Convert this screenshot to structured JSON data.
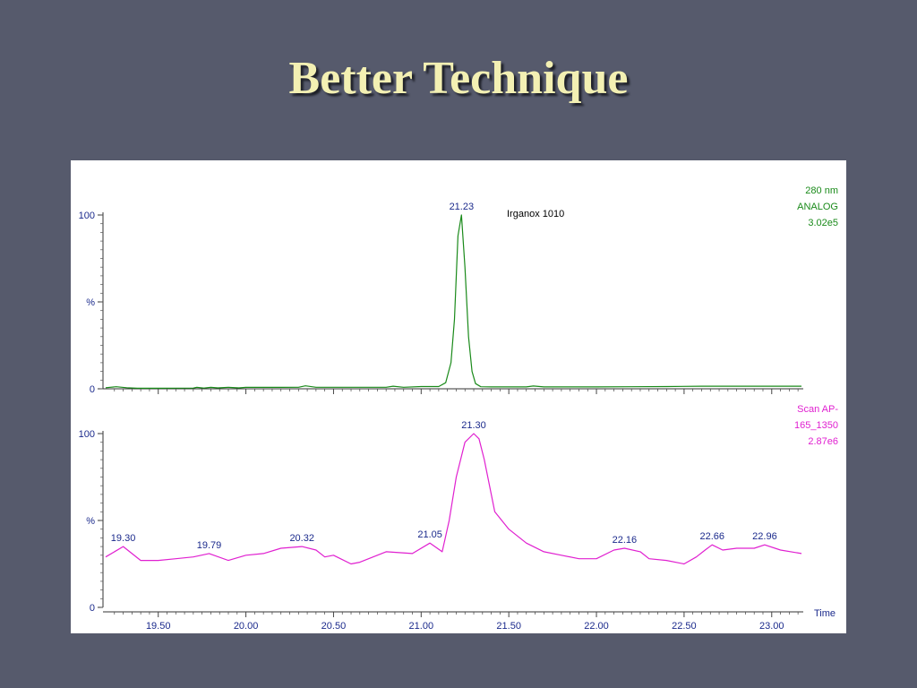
{
  "slide": {
    "title": "Better Technique"
  },
  "colors": {
    "background": "#565a6c",
    "title": "#f3f0b3",
    "uv_trace": "#1a8a1a",
    "ms_trace": "#e020d0",
    "axis_text": "#1b2a8c"
  },
  "chart_data": [
    {
      "type": "line",
      "trace": "uv",
      "annotation": "Irganox 1010",
      "channel_labels": [
        "280 nm",
        "ANALOG",
        "3.02e5"
      ],
      "y_tick_labels": [
        "100",
        "%",
        "0"
      ],
      "ylim": [
        0,
        100
      ],
      "xlim": [
        19.2,
        23.18
      ],
      "peak_labels": [
        {
          "x": 21.23,
          "y": 100,
          "text": "21.23"
        }
      ],
      "x": [
        19.2,
        19.26,
        19.32,
        19.38,
        19.5,
        19.7,
        19.72,
        19.76,
        19.8,
        19.84,
        19.9,
        19.96,
        20.0,
        20.1,
        20.2,
        20.3,
        20.34,
        20.4,
        20.6,
        20.8,
        20.84,
        20.9,
        21.0,
        21.1,
        21.14,
        21.17,
        21.19,
        21.21,
        21.23,
        21.25,
        21.27,
        21.29,
        21.31,
        21.34,
        21.4,
        21.5,
        21.6,
        21.64,
        21.7,
        22.0,
        22.2,
        22.4,
        22.6,
        22.8,
        23.0,
        23.17
      ],
      "series": [
        {
          "values": [
            0.6,
            1.2,
            0.6,
            0.3,
            0.3,
            0.4,
            0.8,
            0.4,
            0.8,
            0.5,
            0.8,
            0.5,
            0.8,
            0.8,
            0.8,
            0.9,
            1.7,
            0.9,
            0.9,
            0.9,
            1.5,
            0.9,
            1.3,
            1.3,
            3.5,
            15,
            40,
            88,
            100,
            70,
            30,
            10,
            3,
            1.2,
            1.1,
            1.1,
            1.1,
            1.6,
            1.1,
            1.1,
            1.2,
            1.3,
            1.5,
            1.5,
            1.5,
            1.5
          ]
        }
      ]
    },
    {
      "type": "line",
      "trace": "ms",
      "channel_labels": [
        "Scan AP-",
        "165_1350",
        "2.87e6"
      ],
      "y_tick_labels": [
        "100",
        "%",
        "0"
      ],
      "ylim": [
        0,
        100
      ],
      "xlim": [
        19.2,
        23.18
      ],
      "x_axis_label": "Time",
      "x_ticks": [
        "19.50",
        "20.00",
        "20.50",
        "21.00",
        "21.50",
        "22.00",
        "22.50",
        "23.00"
      ],
      "peak_labels": [
        {
          "x": 19.3,
          "y": 35,
          "text": "19.30"
        },
        {
          "x": 19.79,
          "y": 31,
          "text": "19.79"
        },
        {
          "x": 20.32,
          "y": 35,
          "text": "20.32"
        },
        {
          "x": 21.05,
          "y": 37,
          "text": "21.05"
        },
        {
          "x": 21.3,
          "y": 100,
          "text": "21.30"
        },
        {
          "x": 22.16,
          "y": 34,
          "text": "22.16"
        },
        {
          "x": 22.66,
          "y": 36,
          "text": "22.66"
        },
        {
          "x": 22.96,
          "y": 36,
          "text": "22.96"
        }
      ],
      "x": [
        19.2,
        19.3,
        19.4,
        19.5,
        19.6,
        19.7,
        19.79,
        19.9,
        20.0,
        20.1,
        20.2,
        20.32,
        20.4,
        20.45,
        20.5,
        20.6,
        20.65,
        20.8,
        20.95,
        21.05,
        21.12,
        21.16,
        21.2,
        21.25,
        21.3,
        21.33,
        21.36,
        21.42,
        21.5,
        21.6,
        21.7,
        21.8,
        21.9,
        22.0,
        22.1,
        22.16,
        22.25,
        22.3,
        22.4,
        22.5,
        22.57,
        22.62,
        22.66,
        22.72,
        22.8,
        22.9,
        22.96,
        23.05,
        23.17
      ],
      "series": [
        {
          "values": [
            29,
            35,
            27,
            27,
            28,
            29,
            31,
            27,
            30,
            31,
            34,
            35,
            33,
            29,
            30,
            25,
            26,
            32,
            31,
            37,
            32,
            50,
            75,
            95,
            100,
            97,
            85,
            55,
            45,
            37,
            32,
            30,
            28,
            28,
            33,
            34,
            32,
            28,
            27,
            25,
            29,
            33,
            36,
            33,
            34,
            34,
            36,
            33,
            31
          ]
        }
      ]
    }
  ]
}
